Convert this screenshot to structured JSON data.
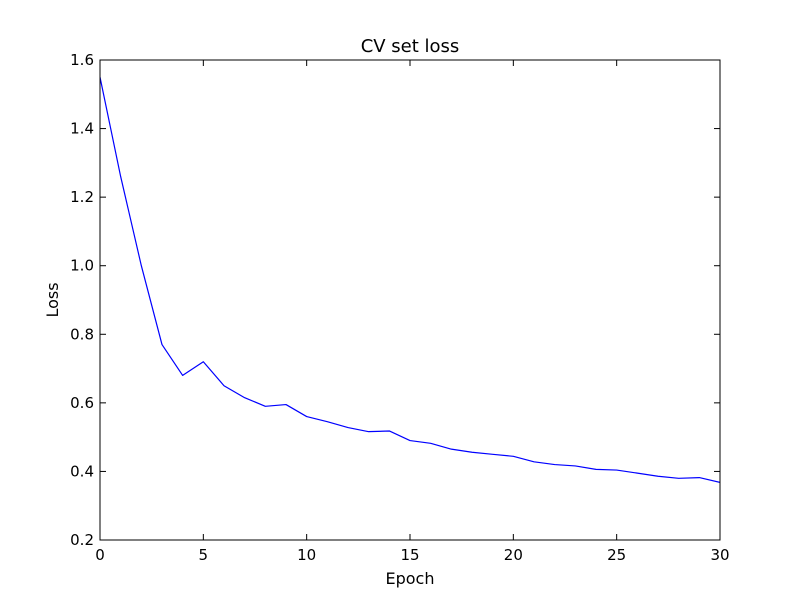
{
  "chart_data": {
    "type": "line",
    "title": "CV set loss",
    "xlabel": "Epoch",
    "ylabel": "Loss",
    "xlim": [
      0,
      30
    ],
    "ylim": [
      0.2,
      1.6
    ],
    "xticks": [
      0,
      5,
      10,
      15,
      20,
      25,
      30
    ],
    "xtick_labels": [
      "0",
      "5",
      "10",
      "15",
      "20",
      "25",
      "30"
    ],
    "yticks": [
      0.2,
      0.4,
      0.6,
      0.8,
      1.0,
      1.2,
      1.4,
      1.6
    ],
    "ytick_labels": [
      "0.2",
      "0.4",
      "0.6",
      "0.8",
      "1.0",
      "1.2",
      "1.4",
      "1.6"
    ],
    "grid": false,
    "series": [
      {
        "color": "#0000ff",
        "x": [
          0,
          1,
          2,
          3,
          4,
          5,
          6,
          7,
          8,
          9,
          10,
          11,
          12,
          13,
          14,
          15,
          16,
          17,
          18,
          19,
          20,
          21,
          22,
          23,
          24,
          25,
          26,
          27,
          28,
          29,
          30
        ],
        "y": [
          1.55,
          1.26,
          1.0,
          0.77,
          0.68,
          0.72,
          0.65,
          0.615,
          0.59,
          0.595,
          0.56,
          0.545,
          0.528,
          0.516,
          0.518,
          0.49,
          0.482,
          0.465,
          0.456,
          0.45,
          0.444,
          0.428,
          0.42,
          0.416,
          0.406,
          0.404,
          0.395,
          0.386,
          0.38,
          0.382,
          0.368
        ]
      }
    ]
  }
}
